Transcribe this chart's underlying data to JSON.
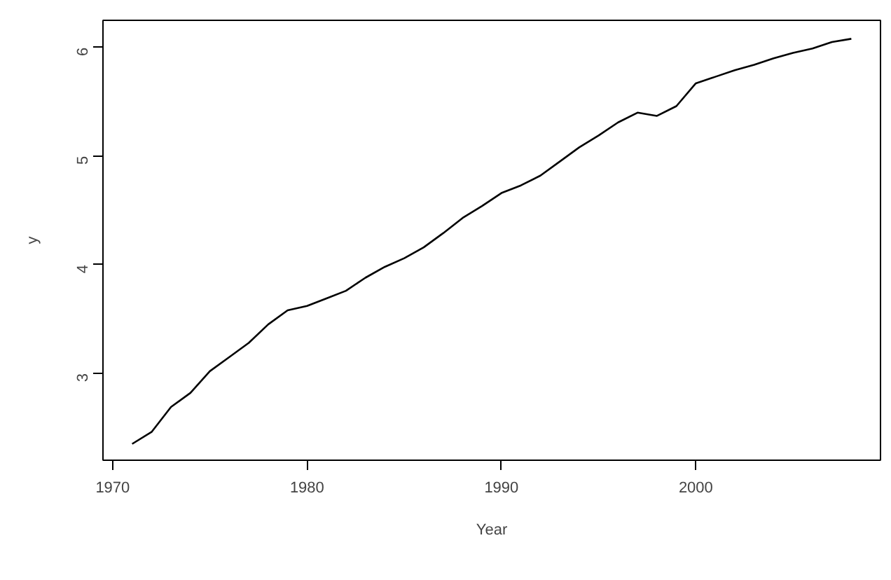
{
  "chart_data": {
    "type": "line",
    "xlabel": "Year",
    "ylabel": "y",
    "x": [
      1971,
      1972,
      1973,
      1974,
      1975,
      1976,
      1977,
      1978,
      1979,
      1980,
      1981,
      1982,
      1983,
      1984,
      1985,
      1986,
      1987,
      1988,
      1989,
      1990,
      1991,
      1992,
      1993,
      1994,
      1995,
      1996,
      1997,
      1998,
      1999,
      2000,
      2001,
      2002,
      2003,
      2004,
      2005,
      2006,
      2007,
      2008
    ],
    "series": [
      {
        "color": "#000000",
        "values": [
          2.35,
          2.46,
          2.69,
          2.82,
          3.02,
          3.15,
          3.28,
          3.45,
          3.58,
          3.62,
          3.69,
          3.76,
          3.88,
          3.98,
          4.06,
          4.16,
          4.29,
          4.43,
          4.54,
          4.66,
          4.73,
          4.82,
          4.95,
          5.08,
          5.19,
          5.31,
          5.4,
          5.37,
          5.46,
          5.67,
          5.73,
          5.79,
          5.84,
          5.9,
          5.95,
          5.99,
          6.05,
          6.08
        ]
      }
    ],
    "xlim": [
      1969.5,
      2009.5
    ],
    "ylim": [
      2.2,
      6.25
    ],
    "xticks": [
      1970,
      1980,
      1990,
      2000
    ],
    "yticks": [
      3,
      4,
      5,
      6
    ],
    "grid": false,
    "line_style": "solid"
  }
}
